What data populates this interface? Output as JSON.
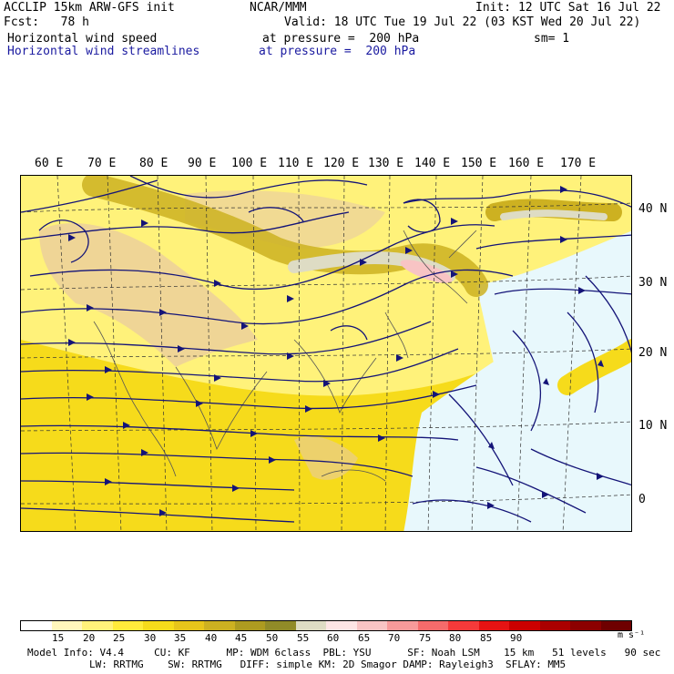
{
  "header": {
    "model": "ACCLIP 15km ARW-GFS init",
    "center": "NCAR/MMM",
    "init": "Init: 12 UTC Sat 16 Jul 22",
    "fcst": "Fcst:   78 h",
    "valid": "Valid: 18 UTC Tue 19 Jul 22 (03 KST Wed 20 Jul 22)",
    "field1": "Horizontal wind speed",
    "field1_level": "at pressure =  200 hPa",
    "smooth": "sm= 1",
    "field2": "Horizontal wind streamlines",
    "field2_level": "at pressure =  200 hPa"
  },
  "lon_labels": [
    "60 E",
    "70 E",
    "80 E",
    "90 E",
    "100 E",
    "110 E",
    "120 E",
    "130 E",
    "140 E",
    "150 E",
    "160 E",
    "170 E"
  ],
  "lat_labels": [
    "40 N",
    "30 N",
    "20 N",
    "10 N",
    "0"
  ],
  "colorbar": {
    "colors": [
      "#ffffff",
      "#fff7bc",
      "#fff27a",
      "#ffeb3b",
      "#f6db1b",
      "#e7c51b",
      "#cdb121",
      "#ad9b20",
      "#918b28",
      "#dedcc4",
      "#fde5e5",
      "#f8c4c4",
      "#f79a9a",
      "#f56b6b",
      "#f53a3a",
      "#e61313",
      "#cc0000",
      "#aa0000",
      "#8c0000",
      "#6e0000"
    ],
    "labels": [
      "15",
      "20",
      "25",
      "30",
      "35",
      "40",
      "45",
      "50",
      "55",
      "60",
      "65",
      "70",
      "75",
      "80",
      "85",
      "90"
    ],
    "units": "m s⁻¹"
  },
  "footer": {
    "line1": "Model Info: V4.4     CU: KF      MP: WDM 6class  PBL: YSU      SF: Noah LSM    15 km   51 levels   90 sec",
    "line2": "LW: RRTMG    SW: RRTMG   DIFF: simple KM: 2D Smagor DAMP: Rayleigh3  SFLAY: MM5"
  }
}
